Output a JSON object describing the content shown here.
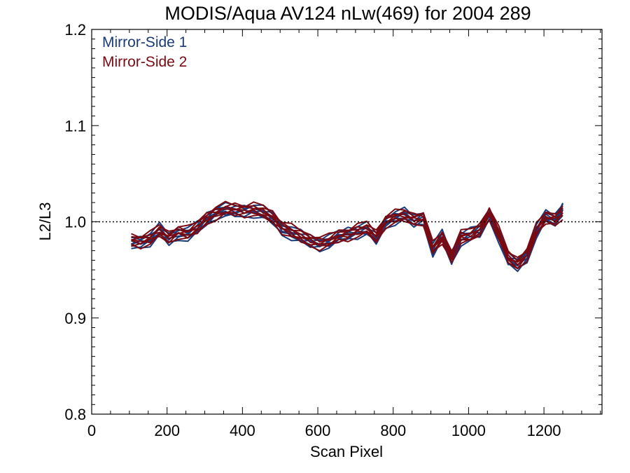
{
  "chart_data": {
    "type": "line",
    "title": "MODIS/Aqua AV124 nLw(469) for 2004 289",
    "xlabel": "Scan Pixel",
    "ylabel": "L2/L3",
    "xlim": [
      0,
      1354
    ],
    "ylim": [
      0.8,
      1.2
    ],
    "x_ticks": [
      0,
      200,
      400,
      600,
      800,
      1000,
      1200
    ],
    "x_tick_labels": [
      "0",
      "200",
      "400",
      "600",
      "800",
      "1000",
      "1200"
    ],
    "y_ticks": [
      0.8,
      0.9,
      1.0,
      1.1,
      1.2
    ],
    "y_tick_labels": [
      "0.8",
      "0.9",
      "1.0",
      "1.1",
      "1.2"
    ],
    "reference_line": 1.0,
    "legend_position": "top-left",
    "grid": false,
    "x": [
      105,
      130,
      155,
      180,
      205,
      230,
      255,
      280,
      305,
      330,
      355,
      380,
      405,
      430,
      455,
      480,
      505,
      530,
      555,
      580,
      605,
      630,
      655,
      680,
      705,
      730,
      755,
      780,
      805,
      830,
      855,
      880,
      905,
      930,
      955,
      980,
      1005,
      1030,
      1055,
      1080,
      1105,
      1130,
      1155,
      1180,
      1205,
      1230,
      1250
    ],
    "series": [
      {
        "name": "Mirror-Side 1",
        "color": "#1a3a7a",
        "values": [
          0.978,
          0.979,
          0.982,
          0.991,
          0.982,
          0.988,
          0.987,
          0.993,
          1.003,
          1.01,
          1.012,
          1.011,
          1.011,
          1.012,
          1.009,
          1.004,
          0.993,
          0.988,
          0.984,
          0.98,
          0.977,
          0.979,
          0.984,
          0.988,
          0.99,
          0.992,
          0.983,
          1.0,
          1.004,
          1.007,
          1.001,
          1.005,
          0.97,
          0.985,
          0.962,
          0.983,
          0.986,
          0.99,
          1.008,
          0.986,
          0.96,
          0.955,
          0.965,
          0.99,
          1.005,
          1.002,
          1.015
        ]
      },
      {
        "name": "Mirror-Side 2",
        "color": "#7a0a12",
        "values": [
          0.981,
          0.98,
          0.983,
          0.99,
          0.984,
          0.99,
          0.988,
          0.994,
          1.004,
          1.009,
          1.013,
          1.013,
          1.012,
          1.013,
          1.01,
          1.005,
          0.995,
          0.99,
          0.985,
          0.981,
          0.978,
          0.98,
          0.985,
          0.987,
          0.991,
          0.993,
          0.985,
          1.001,
          1.005,
          1.006,
          1.003,
          1.004,
          0.972,
          0.983,
          0.965,
          0.985,
          0.985,
          0.992,
          1.01,
          0.988,
          0.963,
          0.957,
          0.967,
          0.991,
          1.004,
          1.003,
          1.01
        ]
      }
    ]
  }
}
